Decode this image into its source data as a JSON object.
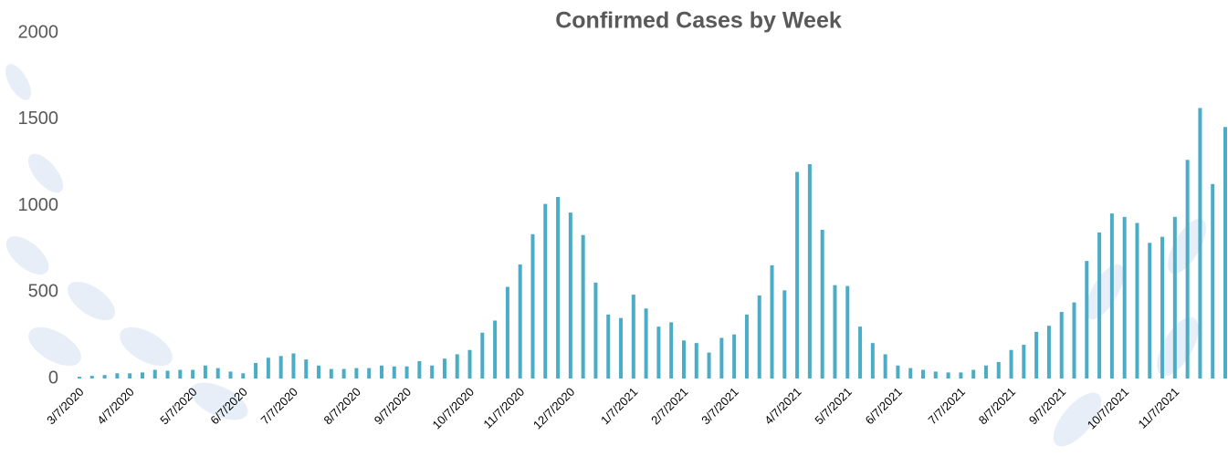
{
  "chart_data": {
    "type": "bar",
    "title": "Confirmed Cases by Week",
    "categories": [
      "3/7/2020",
      null,
      null,
      null,
      "4/7/2020",
      null,
      null,
      null,
      null,
      "5/7/2020",
      null,
      null,
      null,
      "6/7/2020",
      null,
      null,
      null,
      "7/7/2020",
      null,
      null,
      null,
      null,
      "8/7/2020",
      null,
      null,
      null,
      "9/7/2020",
      null,
      null,
      null,
      null,
      "10/7/2020",
      null,
      null,
      null,
      "11/7/2020",
      null,
      null,
      null,
      "12/7/2020",
      null,
      null,
      null,
      null,
      "1/7/2021",
      null,
      null,
      null,
      "2/7/2021",
      null,
      null,
      null,
      "3/7/2021",
      null,
      null,
      null,
      null,
      "4/7/2021",
      null,
      null,
      null,
      "5/7/2021",
      null,
      null,
      null,
      "6/7/2021",
      null,
      null,
      null,
      null,
      "7/7/2021",
      null,
      null,
      null,
      "8/7/2021",
      null,
      null,
      null,
      "9/7/2021",
      null,
      null,
      null,
      null,
      "10/7/2021",
      null,
      null,
      null,
      "11/7/2021",
      null,
      null,
      null,
      null
    ],
    "values": [
      10,
      15,
      20,
      30,
      30,
      35,
      50,
      45,
      50,
      50,
      75,
      60,
      40,
      30,
      90,
      120,
      130,
      145,
      110,
      75,
      55,
      55,
      60,
      60,
      75,
      70,
      70,
      100,
      75,
      115,
      140,
      165,
      265,
      335,
      530,
      660,
      835,
      1010,
      1050,
      960,
      830,
      555,
      370,
      350,
      485,
      405,
      300,
      325,
      220,
      205,
      150,
      235,
      255,
      370,
      480,
      655,
      510,
      1195,
      1240,
      860,
      540,
      535,
      300,
      205,
      140,
      75,
      60,
      50,
      40,
      35,
      35,
      50,
      75,
      95,
      165,
      195,
      270,
      305,
      385,
      440,
      680,
      845,
      955,
      935,
      900,
      785,
      820,
      935,
      1265,
      1565,
      1125,
      1455
    ],
    "color": "#4bacc6",
    "ylim": [
      0,
      2000
    ],
    "yticks": [
      0,
      500,
      1000,
      1500,
      2000
    ],
    "grid": false
  }
}
